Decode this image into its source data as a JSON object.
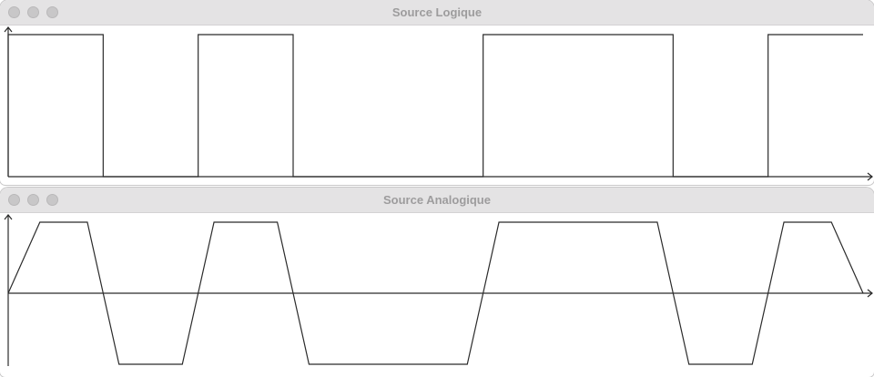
{
  "windows": [
    {
      "title": "Source Logique",
      "traffic_lights": [
        "close-button",
        "minimize-button",
        "zoom-button"
      ]
    },
    {
      "title": "Source Analogique",
      "traffic_lights": [
        "close-button",
        "minimize-button",
        "zoom-button"
      ]
    }
  ],
  "signal": {
    "bits": [
      1,
      0,
      1,
      0,
      0,
      1,
      1,
      0,
      1
    ],
    "logic_levels": {
      "high": 1,
      "low": 0
    },
    "analog_levels": {
      "high": 1,
      "low": -1
    }
  },
  "colors": {
    "titlebar": "#e4e3e4",
    "title_text": "#9d9c9d",
    "traffic_light": "#c8c7c8",
    "trace": "#2b2b2b",
    "background": "#ffffff"
  }
}
